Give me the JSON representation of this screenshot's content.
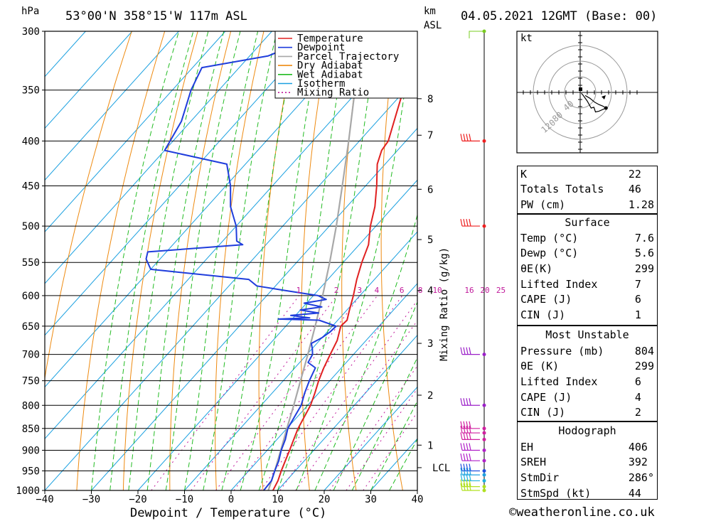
{
  "header": {
    "pressure_unit": "hPa",
    "location": "53°00'N  358°15'W  117m  ASL",
    "km_unit": "km",
    "asl_unit": "ASL",
    "datetime": "04.05.2021  12GMT  (Base: 00)"
  },
  "chart_data": {
    "type": "skew-t",
    "xlabel": "Dewpoint / Temperature (°C)",
    "ylabel_right": "Mixing Ratio (g/kg)",
    "x_ticks": [
      -40,
      -30,
      -20,
      -10,
      0,
      10,
      20,
      30,
      40
    ],
    "pressure_levels": [
      300,
      350,
      400,
      450,
      500,
      550,
      600,
      650,
      700,
      750,
      800,
      850,
      900,
      950,
      1000
    ],
    "xlim": [
      -40,
      40
    ],
    "ylim_hpa": [
      1000,
      300
    ],
    "height_km_ticks": [
      {
        "label": "8",
        "hpa": 358
      },
      {
        "label": "7",
        "hpa": 394
      },
      {
        "label": "6",
        "hpa": 454
      },
      {
        "label": "5",
        "hpa": 518
      },
      {
        "label": "4",
        "hpa": 592
      },
      {
        "label": "3",
        "hpa": 680
      },
      {
        "label": "2",
        "hpa": 779
      },
      {
        "label": "1",
        "hpa": 888
      },
      {
        "label": "LCL",
        "hpa": 942
      }
    ],
    "mixing_ratio_labels": [
      "1",
      "2",
      "3",
      "4",
      "6",
      "8",
      "10",
      "16",
      "20",
      "25"
    ],
    "mixing_ratio_values": [
      1,
      2,
      3,
      4,
      6,
      8,
      10,
      16,
      20,
      25
    ],
    "legend": [
      "Temperature",
      "Dewpoint",
      "Parcel Trajectory",
      "Dry Adiabat",
      "Wet Adiabat",
      "Isotherm",
      "Mixing Ratio"
    ],
    "colors": {
      "temperature": "#e02020",
      "dewpoint": "#1f3ddc",
      "parcel": "#a8a8a8",
      "dry_adiabat": "#ee8a10",
      "wet_adiabat": "#22bb22",
      "isotherm": "#1aa0e0",
      "mixing_ratio": "#c0189a"
    },
    "temperature": [
      {
        "p": 1000,
        "t": 9.0
      },
      {
        "p": 975,
        "t": 8.2
      },
      {
        "p": 950,
        "t": 7.0
      },
      {
        "p": 925,
        "t": 5.9
      },
      {
        "p": 900,
        "t": 4.8
      },
      {
        "p": 875,
        "t": 3.6
      },
      {
        "p": 850,
        "t": 2.4
      },
      {
        "p": 800,
        "t": 0.6
      },
      {
        "p": 775,
        "t": -0.8
      },
      {
        "p": 750,
        "t": -2.4
      },
      {
        "p": 725,
        "t": -3.8
      },
      {
        "p": 700,
        "t": -5.0
      },
      {
        "p": 675,
        "t": -6.2
      },
      {
        "p": 650,
        "t": -8.2
      },
      {
        "p": 640,
        "t": -8.0
      },
      {
        "p": 625,
        "t": -9.3
      },
      {
        "p": 600,
        "t": -11.4
      },
      {
        "p": 575,
        "t": -13.8
      },
      {
        "p": 550,
        "t": -16.0
      },
      {
        "p": 525,
        "t": -18.0
      },
      {
        "p": 500,
        "t": -21.2
      },
      {
        "p": 475,
        "t": -24.0
      },
      {
        "p": 450,
        "t": -27.6
      },
      {
        "p": 425,
        "t": -31.7
      },
      {
        "p": 410,
        "t": -33.4
      },
      {
        "p": 400,
        "t": -33.8
      },
      {
        "p": 375,
        "t": -37.0
      },
      {
        "p": 350,
        "t": -40.4
      },
      {
        "p": 330,
        "t": -43.8
      },
      {
        "p": 320,
        "t": -44.2
      },
      {
        "p": 310,
        "t": -46.6
      },
      {
        "p": 300,
        "t": -48.6
      }
    ],
    "dewpoint": [
      {
        "p": 1000,
        "t": 7.0
      },
      {
        "p": 975,
        "t": 6.8
      },
      {
        "p": 950,
        "t": 5.6
      },
      {
        "p": 925,
        "t": 4.5
      },
      {
        "p": 900,
        "t": 3.0
      },
      {
        "p": 875,
        "t": 1.8
      },
      {
        "p": 850,
        "t": 0.2
      },
      {
        "p": 825,
        "t": -0.6
      },
      {
        "p": 800,
        "t": -1.4
      },
      {
        "p": 775,
        "t": -3.0
      },
      {
        "p": 750,
        "t": -4.4
      },
      {
        "p": 725,
        "t": -5.6
      },
      {
        "p": 715,
        "t": -8.2
      },
      {
        "p": 700,
        "t": -8.8
      },
      {
        "p": 690,
        "t": -9.9
      },
      {
        "p": 680,
        "t": -11.2
      },
      {
        "p": 670,
        "t": -10.0
      },
      {
        "p": 660,
        "t": -9.4
      },
      {
        "p": 650,
        "t": -9.2
      },
      {
        "p": 640,
        "t": -14.0
      },
      {
        "p": 638,
        "t": -23.0
      },
      {
        "p": 636,
        "t": -16.5
      },
      {
        "p": 632,
        "t": -21.0
      },
      {
        "p": 628,
        "t": -15.5
      },
      {
        "p": 623,
        "t": -20.0
      },
      {
        "p": 618,
        "t": -16.0
      },
      {
        "p": 612,
        "t": -20.5
      },
      {
        "p": 606,
        "t": -16.5
      },
      {
        "p": 600,
        "t": -19.0
      },
      {
        "p": 592,
        "t": -27.0
      },
      {
        "p": 585,
        "t": -34.0
      },
      {
        "p": 575,
        "t": -37.0
      },
      {
        "p": 560,
        "t": -60.0
      },
      {
        "p": 545,
        "t": -63.0
      },
      {
        "p": 535,
        "t": -64.0
      },
      {
        "p": 525,
        "t": -45.0
      },
      {
        "p": 520,
        "t": -47.0
      },
      {
        "p": 500,
        "t": -50.0
      },
      {
        "p": 475,
        "t": -55.0
      },
      {
        "p": 450,
        "t": -59.0
      },
      {
        "p": 425,
        "t": -64.0
      },
      {
        "p": 410,
        "t": -80.0
      },
      {
        "p": 380,
        "t": -82.0
      },
      {
        "p": 350,
        "t": -86.0
      },
      {
        "p": 330,
        "t": -88.0
      },
      {
        "p": 320,
        "t": -76.0
      },
      {
        "p": 310,
        "t": -72.0
      },
      {
        "p": 300,
        "t": -75.0
      }
    ],
    "parcel": [
      {
        "p": 1000,
        "t": 8.0
      },
      {
        "p": 950,
        "t": 5.6
      },
      {
        "p": 900,
        "t": 2.9
      },
      {
        "p": 850,
        "t": 0.0
      },
      {
        "p": 800,
        "t": -3.0
      },
      {
        "p": 750,
        "t": -6.3
      },
      {
        "p": 700,
        "t": -9.8
      },
      {
        "p": 650,
        "t": -13.7
      },
      {
        "p": 600,
        "t": -18.0
      },
      {
        "p": 550,
        "t": -22.9
      },
      {
        "p": 500,
        "t": -28.5
      },
      {
        "p": 450,
        "t": -35.0
      },
      {
        "p": 400,
        "t": -42.3
      },
      {
        "p": 350,
        "t": -50.8
      },
      {
        "p": 300,
        "t": -60.0
      }
    ],
    "hodograph": {
      "unit": "kt",
      "ring_labels": [
        "40",
        "80",
        "120"
      ],
      "ring_values": [
        40,
        80,
        120
      ],
      "points": [
        [
          13,
          -8
        ],
        [
          25,
          -15
        ],
        [
          37,
          -25
        ],
        [
          48,
          -31
        ],
        [
          58,
          -35
        ],
        [
          66,
          -40
        ],
        [
          48,
          -48
        ],
        [
          39,
          -50
        ],
        [
          35,
          -38
        ],
        [
          28,
          -40
        ],
        [
          18,
          -22
        ],
        [
          8,
          -8
        ],
        [
          3,
          -2
        ]
      ]
    },
    "wind_barbs_hpa": [
      300,
      400,
      500,
      700,
      800,
      850,
      860,
      875,
      900,
      925,
      950,
      960,
      975,
      990,
      1000
    ]
  },
  "indices": {
    "general": [
      {
        "label": "K",
        "value": "22"
      },
      {
        "label": "Totals Totals",
        "value": "46"
      },
      {
        "label": "PW (cm)",
        "value": "1.28"
      }
    ],
    "surface": {
      "title": "Surface",
      "rows": [
        {
          "label": "Temp (°C)",
          "value": "7.6"
        },
        {
          "label": "Dewp (°C)",
          "value": "5.6"
        },
        {
          "label": "θE(K)",
          "value": "299"
        },
        {
          "label": "Lifted Index",
          "value": "7"
        },
        {
          "label": "CAPE (J)",
          "value": "6"
        },
        {
          "label": "CIN (J)",
          "value": "1"
        }
      ]
    },
    "most_unstable": {
      "title": "Most Unstable",
      "rows": [
        {
          "label": "Pressure (mb)",
          "value": "804"
        },
        {
          "label": "θE (K)",
          "value": "299"
        },
        {
          "label": "Lifted Index",
          "value": "6"
        },
        {
          "label": "CAPE (J)",
          "value": "4"
        },
        {
          "label": "CIN (J)",
          "value": "2"
        }
      ]
    },
    "hodograph": {
      "title": "Hodograph",
      "rows": [
        {
          "label": "EH",
          "value": "406"
        },
        {
          "label": "SREH",
          "value": "392"
        },
        {
          "label": "StmDir",
          "value": "286°"
        },
        {
          "label": "StmSpd (kt)",
          "value": "44"
        }
      ]
    }
  },
  "footer": {
    "credit": "©weatheronline.co.uk"
  }
}
